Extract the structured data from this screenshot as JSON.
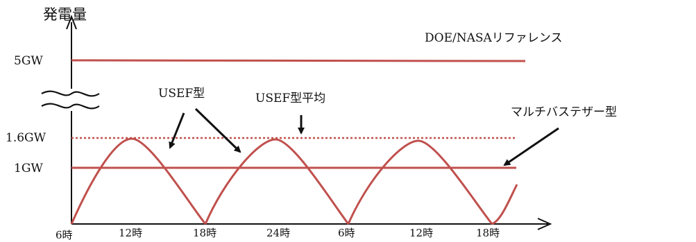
{
  "chart_data": {
    "type": "line",
    "ylabel": "発電量",
    "y_ticks": [
      "5GW",
      "1.6GW",
      "1GW"
    ],
    "x_ticks": [
      "6時",
      "12時",
      "18時",
      "24時",
      "6時",
      "12時",
      "18時"
    ],
    "axis_break": true,
    "series": [
      {
        "name": "DOE/NASAリファレンス",
        "style": "solid",
        "value_gw": 5
      },
      {
        "name": "USEF型平均",
        "style": "dotted",
        "value_gw": 1.6
      },
      {
        "name": "マルチバステザー型",
        "style": "solid",
        "value_gw": 1
      },
      {
        "name": "USEF型",
        "style": "arch",
        "peak_gw": 1.6,
        "period_hours": 12,
        "peaks_at": [
          "12時",
          "24時",
          "12時"
        ]
      }
    ]
  },
  "colors": {
    "series": "#c0504d",
    "axis": "#111111"
  }
}
